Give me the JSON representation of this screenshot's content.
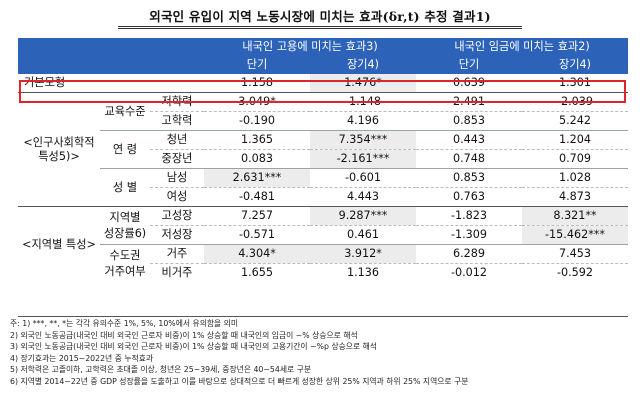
{
  "title": "외국인 유입이 지역 노동시장에 미치는 효과(δr,t) 추정 결과1)",
  "header": {
    "group_employment": "내국인 고용에 미치는 효과3)",
    "group_wage": "내국인 임금에 미치는 효과2)",
    "short": "단기",
    "long": "장기4)"
  },
  "baseline": {
    "label": "기본모형",
    "values": [
      "1.158",
      "1.476*",
      "0.639",
      "1.301"
    ]
  },
  "demographic_label": "<인구사회학적 특성5)>",
  "region_label": "<지역별 특성>",
  "education": {
    "label": "교육수준",
    "rows": [
      {
        "sub": "저학력",
        "values": [
          "3.049*",
          "-1.148",
          "2.491",
          "-2.039"
        ]
      },
      {
        "sub": "고학력",
        "values": [
          "-0.190",
          "4.196",
          "0.853",
          "5.242"
        ]
      }
    ]
  },
  "age": {
    "label": "연 령",
    "rows": [
      {
        "sub": "청년",
        "values": [
          "1.365",
          "7.354***",
          "0.443",
          "1.204"
        ]
      },
      {
        "sub": "중장년",
        "values": [
          "0.083",
          "-2.161***",
          "0.748",
          "0.709"
        ]
      }
    ]
  },
  "sex": {
    "label": "성 별",
    "rows": [
      {
        "sub": "남성",
        "values": [
          "2.631***",
          "-0.601",
          "0.853",
          "1.028"
        ]
      },
      {
        "sub": "여성",
        "values": [
          "-0.481",
          "4.443",
          "0.763",
          "4.873"
        ]
      }
    ]
  },
  "growth": {
    "label1": "지역별",
    "label2": "성장률6)",
    "rows": [
      {
        "sub": "고성장",
        "values": [
          "7.257",
          "9.287***",
          "-1.823",
          "8.321**"
        ]
      },
      {
        "sub": "저성장",
        "values": [
          "-0.571",
          "0.461",
          "-1.309",
          "-15.462***"
        ]
      }
    ]
  },
  "capital": {
    "label1": "수도권",
    "label2": "거주여부",
    "rows": [
      {
        "sub": "거주",
        "values": [
          "4.304*",
          "3.912*",
          "6.289",
          "7.453"
        ]
      },
      {
        "sub": "비거주",
        "values": [
          "1.655",
          "1.136",
          "-0.012",
          "-0.592"
        ]
      }
    ]
  },
  "notes": [
    "주: 1) ***, **, *는 각각 유의수준 1%, 5%, 10%에서 유의함을 의미",
    "    2) 외국인 노동공급(내국인 대비 외국인 근로자 비중)이 1% 상승할 때 내국인의 임금이 ~% 상승으로 해석",
    "    3) 외국인 노동공급(내국인 대비 외국인 근로자 비중)이 1% 상승할 때 내국인의 고용기간이 ~%p 상승으로 해석",
    "    4) 장기효과는 2015~2022년 중 누적효과",
    "    5) 저학력은 고졸이하, 고학력은 초대졸 이상, 청년은 25~39세, 중장년은 40~54세로 구분",
    "    6) 지역별 2014~22년 중 GDP 성장률을 도출하고 이를 바탕으로 상대적으로 더 빠르게 성장한 상위 25% 지역과 하위 25% 지역으로 구분"
  ]
}
